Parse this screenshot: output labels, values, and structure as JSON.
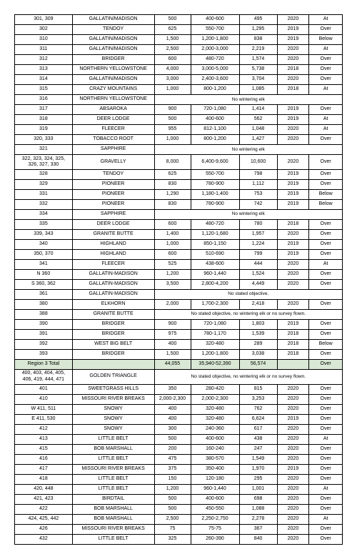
{
  "rows": [
    {
      "t": "r",
      "c": [
        "301, 309",
        "GALLATIN/MADISON",
        "500",
        "400-600",
        "495",
        "2020",
        "At"
      ]
    },
    {
      "t": "r",
      "c": [
        "302",
        "TENDOY",
        "625",
        "550-700",
        "1,295",
        "2019",
        "Over"
      ]
    },
    {
      "t": "r",
      "c": [
        "310",
        "GALLATIN/MADISON",
        "1,500",
        "1,200-1,800",
        "838",
        "2019",
        "Below"
      ]
    },
    {
      "t": "r",
      "c": [
        "311",
        "GALLATIN/MADISON",
        "2,500",
        "2,000-3,000",
        "2,219",
        "2020",
        "At"
      ]
    },
    {
      "t": "r",
      "c": [
        "312",
        "BRIDGER",
        "600",
        "480-720",
        "1,574",
        "2020",
        "Over"
      ]
    },
    {
      "t": "r",
      "c": [
        "313",
        "NORTHERN YELLOWSTONE",
        "4,000",
        "3,000-5,000",
        "5,738",
        "2018",
        "Over"
      ]
    },
    {
      "t": "r",
      "c": [
        "314",
        "GALLATIN/MADISON",
        "3,000",
        "2,400-3,600",
        "3,704",
        "2020",
        "Over"
      ]
    },
    {
      "t": "r",
      "c": [
        "315",
        "CRAZY MOUNTAINS",
        "1,000",
        "800-1,200",
        "1,085",
        "2018",
        "At"
      ]
    },
    {
      "t": "n",
      "c": [
        "316",
        "NORTHERN YELLOWSTONE",
        "No wintering elk"
      ]
    },
    {
      "t": "r",
      "c": [
        "317",
        "ABSAROKA",
        "900",
        "720-1,080",
        "1,414",
        "2019",
        "Over"
      ]
    },
    {
      "t": "r",
      "c": [
        "318",
        "DEER LODGE",
        "500",
        "400-600",
        "562",
        "2019",
        "At"
      ]
    },
    {
      "t": "r",
      "c": [
        "319",
        "FLEECER",
        "955",
        "812-1,100",
        "1,048",
        "2020",
        "At"
      ]
    },
    {
      "t": "r",
      "c": [
        "320, 333",
        "TOBACCO ROOT",
        "1,000",
        "800-1,200",
        "1,427",
        "2020",
        "Over"
      ]
    },
    {
      "t": "n",
      "c": [
        "321",
        "SAPPHIRE",
        "No wintering elk"
      ]
    },
    {
      "t": "r",
      "c": [
        "322, 323, 324, 325, 326, 327, 330",
        "GRAVELLY",
        "8,000",
        "6,400-9,600",
        "10,600",
        "2020",
        "Over"
      ]
    },
    {
      "t": "r",
      "c": [
        "328",
        "TENDOY",
        "625",
        "550-700",
        "798",
        "2019",
        "Over"
      ]
    },
    {
      "t": "r",
      "c": [
        "329",
        "PIONEER",
        "830",
        "780-900",
        "1,112",
        "2019",
        "Over"
      ]
    },
    {
      "t": "r",
      "c": [
        "331",
        "PIONEER",
        "1,290",
        "1,180-1,400",
        "753",
        "2019",
        "Below"
      ]
    },
    {
      "t": "r",
      "c": [
        "332",
        "PIONEER",
        "830",
        "780-900",
        "742",
        "2019",
        "Below"
      ]
    },
    {
      "t": "n",
      "c": [
        "334",
        "SAPPHIRE",
        "No wintering elk"
      ]
    },
    {
      "t": "r",
      "c": [
        "335",
        "DEER LODGE",
        "600",
        "480-720",
        "780",
        "2018",
        "Over"
      ]
    },
    {
      "t": "r",
      "c": [
        "339, 343",
        "GRANITE BUTTE",
        "1,400",
        "1,120-1,680",
        "1,957",
        "2020",
        "Over"
      ]
    },
    {
      "t": "r",
      "c": [
        "340",
        "HIGHLAND",
        "1,000",
        "850-1,150",
        "1,224",
        "2019",
        "Over"
      ]
    },
    {
      "t": "r",
      "c": [
        "350, 370",
        "HIGHLAND",
        "600",
        "510-690",
        "799",
        "2019",
        "Over"
      ]
    },
    {
      "t": "r",
      "c": [
        "341",
        "FLEECER",
        "525",
        "438-600",
        "444",
        "2020",
        "At"
      ]
    },
    {
      "t": "r",
      "c": [
        "N 360",
        "GALLATIN-MADISON",
        "1,200",
        "960-1,440",
        "1,524",
        "2020",
        "Over"
      ]
    },
    {
      "t": "r",
      "c": [
        "S 360, 362",
        "GALLATIN-MADISON",
        "3,500",
        "2,800-4,200",
        "4,449",
        "2020",
        "Over"
      ]
    },
    {
      "t": "n",
      "c": [
        "361",
        "GALLATIN-MADISON",
        "No stated objective."
      ]
    },
    {
      "t": "r",
      "c": [
        "380",
        "ELKHORN",
        "2,000",
        "1,700-2,300",
        "2,418",
        "2020",
        "Over"
      ]
    },
    {
      "t": "n",
      "c": [
        "388",
        "GRANITE BUTTE",
        "No stated objective, no wintering elk or no survey flown."
      ]
    },
    {
      "t": "r",
      "c": [
        "390",
        "BRIDGER",
        "900",
        "720-1,080",
        "1,803",
        "2019",
        "Over"
      ]
    },
    {
      "t": "r",
      "c": [
        "391",
        "BRIDGER",
        "975",
        "780-1,170",
        "1,539",
        "2018",
        "Over"
      ]
    },
    {
      "t": "r",
      "c": [
        "392",
        "WEST BIG BELT",
        "400",
        "320-480",
        "289",
        "2018",
        "Below"
      ]
    },
    {
      "t": "r",
      "c": [
        "393",
        "BRIDGER",
        "1,500",
        "1,200-1,800",
        "3,038",
        "2018",
        "Over"
      ]
    },
    {
      "t": "total",
      "c": [
        "Region 3 Total",
        "",
        "44,055",
        "35,940-52,390",
        "56,574",
        "",
        "Over"
      ]
    },
    {
      "t": "n",
      "c": [
        "400, 403, 404, 405, 406, 419, 444, 471",
        "GOLDEN TRIANGLE",
        "No stated objective, no wintering elk or no survey flown."
      ]
    },
    {
      "t": "r",
      "c": [
        "401",
        "SWEETGRASS HILLS",
        "350",
        "280-420",
        "815",
        "2020",
        "Over"
      ]
    },
    {
      "t": "r",
      "c": [
        "410",
        "MISSOURI RIVER BREAKS",
        "2,000-2,300",
        "2,000-2,300",
        "3,253",
        "2020",
        "Over"
      ]
    },
    {
      "t": "r",
      "c": [
        "W 411, 511",
        "SNOWY",
        "400",
        "320-480",
        "762",
        "2020",
        "Over"
      ]
    },
    {
      "t": "r",
      "c": [
        "E 411, 530",
        "SNOWY",
        "400",
        "320-480",
        "6,624",
        "2019",
        "Over"
      ]
    },
    {
      "t": "r",
      "c": [
        "412",
        "SNOWY",
        "300",
        "240-360",
        "617",
        "2020",
        "Over"
      ]
    },
    {
      "t": "r",
      "c": [
        "413",
        "LITTLE BELT",
        "500",
        "400-600",
        "438",
        "2020",
        "At"
      ]
    },
    {
      "t": "r",
      "c": [
        "415",
        "BOB MARSHALL",
        "200",
        "160-240",
        "247",
        "2020",
        "Over"
      ]
    },
    {
      "t": "r",
      "c": [
        "416",
        "LITTLE BELT",
        "475",
        "380-570",
        "1,549",
        "2020",
        "Over"
      ]
    },
    {
      "t": "r",
      "c": [
        "417",
        "MISSOURI RIVER BREAKS",
        "375",
        "350-400",
        "1,970",
        "2019",
        "Over"
      ]
    },
    {
      "t": "r",
      "c": [
        "418",
        "LITTLE BELT",
        "150",
        "120-180",
        "295",
        "2020",
        "Over"
      ]
    },
    {
      "t": "r",
      "c": [
        "420, 448",
        "LITTLE BELT",
        "1,200",
        "960-1,440",
        "1,001",
        "2020",
        "At"
      ]
    },
    {
      "t": "r",
      "c": [
        "421, 423",
        "BIRDTAIL",
        "500",
        "400-600",
        "698",
        "2020",
        "Over"
      ]
    },
    {
      "t": "r",
      "c": [
        "422",
        "BOB MARSHALL",
        "500",
        "450-550",
        "1,088",
        "2020",
        "Over"
      ]
    },
    {
      "t": "r",
      "c": [
        "424, 425, 442",
        "BOB MARSHALL",
        "2,500",
        "2,250-2,750",
        "2,278",
        "2020",
        "At"
      ]
    },
    {
      "t": "r",
      "c": [
        "426",
        "MISSOURI RIVER BREAKS",
        "75",
        "75-75",
        "367",
        "2020",
        "Over"
      ]
    },
    {
      "t": "r",
      "c": [
        "432",
        "LITTLE BELT",
        "325",
        "260-390",
        "840",
        "2020",
        "Over"
      ]
    }
  ]
}
